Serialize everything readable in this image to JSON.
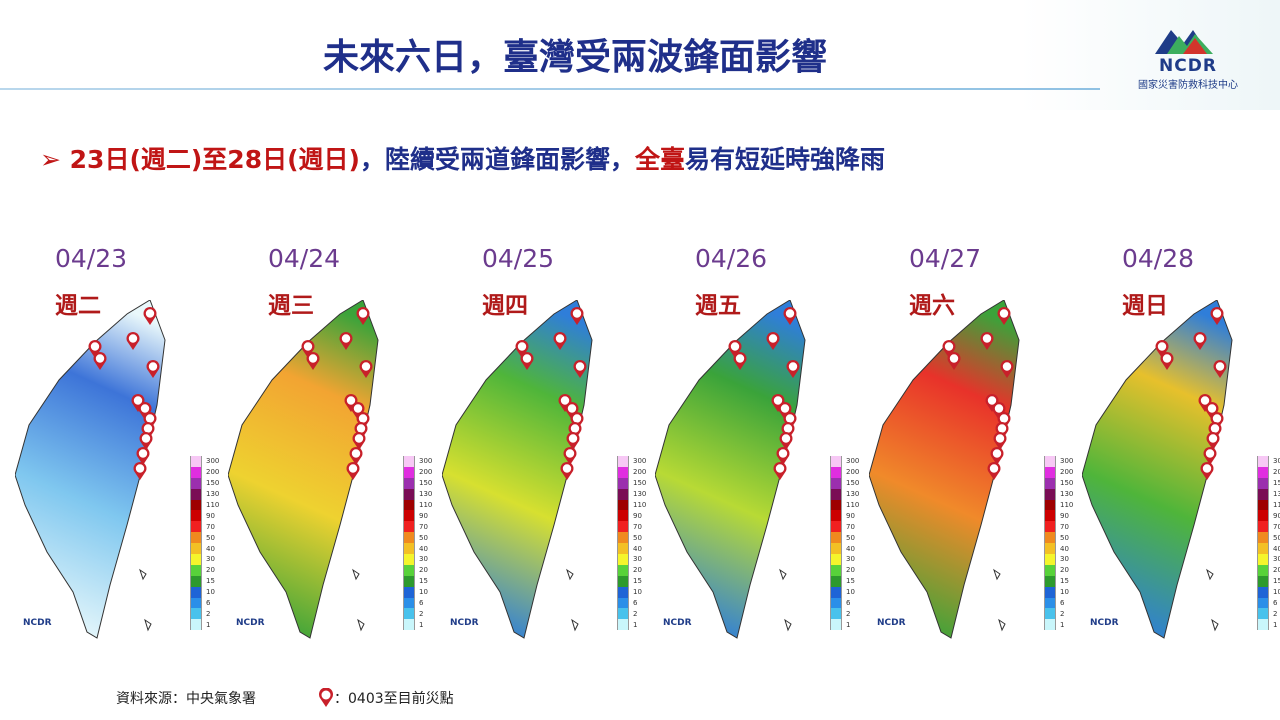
{
  "header": {
    "title": "未來六日，臺灣受兩波鋒面影響"
  },
  "logo": {
    "name": "NCDR",
    "subtitle": "國家災害防救科技中心"
  },
  "subtitle": {
    "segments": [
      {
        "text": "23日(週二)至28日(週日)",
        "color": "#c01515"
      },
      {
        "text": "，陸續受兩道鋒面影響，",
        "color": "#1f2f8a"
      },
      {
        "text": "全臺",
        "color": "#c01515"
      },
      {
        "text": "易有短延時強降雨",
        "color": "#1f2f8a"
      }
    ]
  },
  "legend": {
    "values": [
      "300",
      "200",
      "150",
      "130",
      "110",
      "90",
      "70",
      "50",
      "40",
      "30",
      "20",
      "15",
      "10",
      "6",
      "2",
      "1"
    ],
    "colors": [
      "#f7c8f5",
      "#e02ee0",
      "#9b2fae",
      "#7a0d55",
      "#9e0000",
      "#cc0000",
      "#f02020",
      "#f08a1f",
      "#f3c025",
      "#f5f52c",
      "#58d23a",
      "#2d9a2d",
      "#1e64d6",
      "#2b8fe8",
      "#49c2ec",
      "#c9f6fb"
    ]
  },
  "maps": [
    {
      "date": "04/23",
      "weekday": "週二",
      "colors": [
        "#3d74d8",
        "#7fc7ef",
        "#e9f8fb"
      ],
      "pins": 12
    },
    {
      "date": "04/24",
      "weekday": "週三",
      "colors": [
        "#f2a432",
        "#eed230",
        "#3ba33a"
      ],
      "pins": 12
    },
    {
      "date": "04/25",
      "weekday": "週四",
      "colors": [
        "#4fb53a",
        "#d7e030",
        "#2f7ed9"
      ],
      "pins": 12
    },
    {
      "date": "04/26",
      "weekday": "週五",
      "colors": [
        "#3aa33a",
        "#b8da35",
        "#2f7ed9"
      ],
      "pins": 12
    },
    {
      "date": "04/27",
      "weekday": "週六",
      "colors": [
        "#e8322a",
        "#f08a2a",
        "#3ba33a"
      ],
      "pins": 12
    },
    {
      "date": "04/28",
      "weekday": "週日",
      "colors": [
        "#e7c02c",
        "#4fb53a",
        "#2f7ed9"
      ],
      "pins": 12
    }
  ],
  "map_logo": "NCDR",
  "footer": {
    "source": "資料來源：中央氣象署",
    "pin_legend": "：0403至目前災點"
  }
}
